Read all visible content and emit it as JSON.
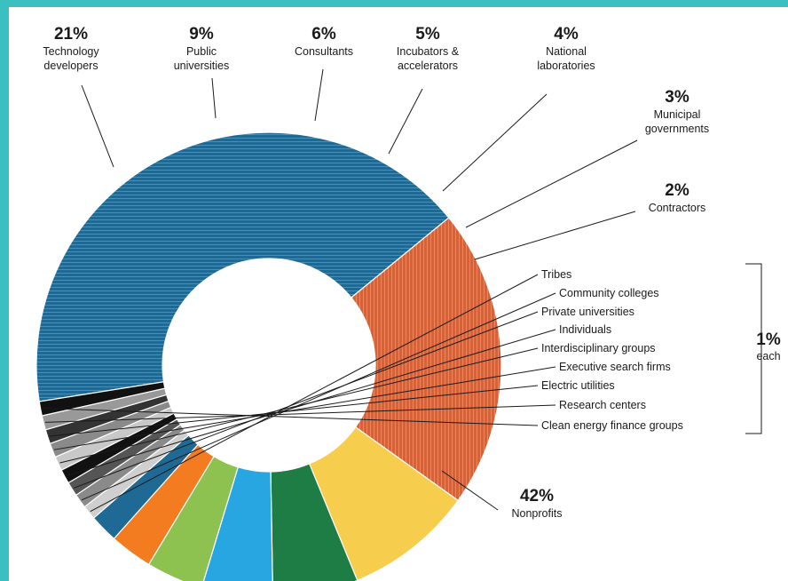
{
  "chart_data": {
    "type": "pie",
    "subtype": "donut",
    "slices": [
      {
        "name": "Nonprofits",
        "value": 42,
        "pct": "42%",
        "color": "#1f6a95"
      },
      {
        "name": "Technology developers",
        "value": 21,
        "pct": "21%",
        "color": "#d4633a"
      },
      {
        "name": "Public universities",
        "value": 9,
        "pct": "9%",
        "color": "#f6cd4c"
      },
      {
        "name": "Consultants",
        "value": 6,
        "pct": "6%",
        "color": "#1d7d45"
      },
      {
        "name": "Incubators & accelerators",
        "value": 5,
        "pct": "5%",
        "color": "#27a6e2"
      },
      {
        "name": "National laboratories",
        "value": 4,
        "pct": "4%",
        "color": "#8dc150"
      },
      {
        "name": "Municipal governments",
        "value": 3,
        "pct": "3%",
        "color": "#f47c20"
      },
      {
        "name": "Contractors",
        "value": 2,
        "pct": "2%",
        "color": "#1f6a95"
      },
      {
        "name": "Tribes",
        "value": 1,
        "color": "#cfcfcf"
      },
      {
        "name": "Community colleges",
        "value": 1,
        "color": "#8a8a8a"
      },
      {
        "name": "Private universities",
        "value": 1,
        "color": "#555555"
      },
      {
        "name": "Individuals",
        "value": 1,
        "color": "#111111"
      },
      {
        "name": "Interdisciplinary groups",
        "value": 1,
        "color": "#c8c8c8"
      },
      {
        "name": "Executive search firms",
        "value": 1,
        "color": "#8a8a8a"
      },
      {
        "name": "Electric utilities",
        "value": 1,
        "color": "#333333"
      },
      {
        "name": "Research centers",
        "value": 1,
        "color": "#999999"
      },
      {
        "name": "Clean energy finance groups",
        "value": 1,
        "color": "#111111"
      }
    ],
    "group_note": {
      "pct": "1%",
      "text": "each"
    }
  }
}
